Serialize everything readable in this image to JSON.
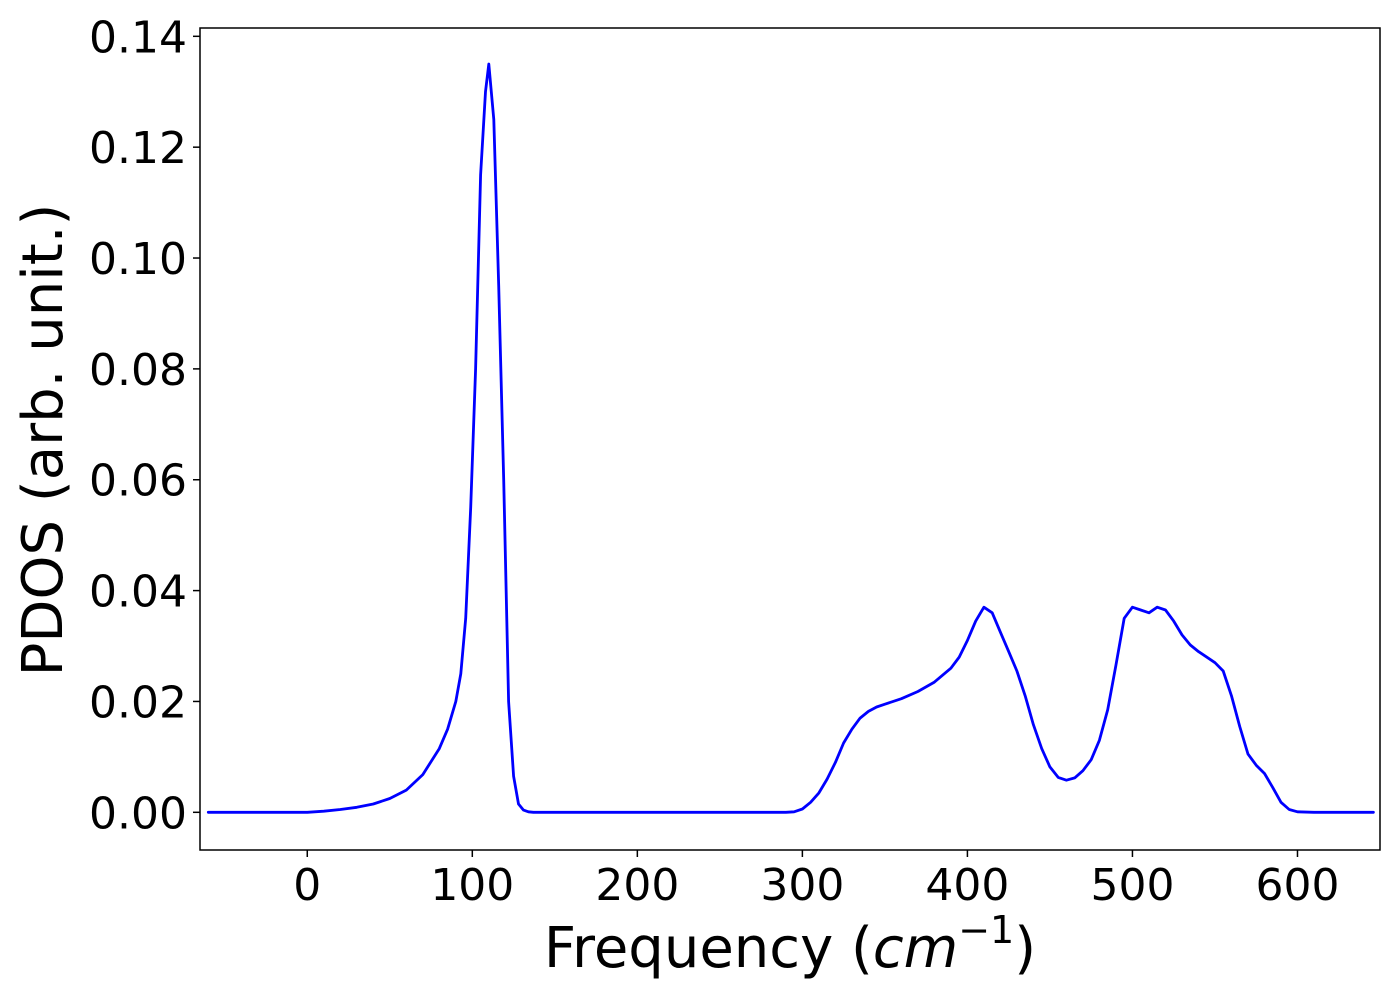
{
  "chart_data": {
    "type": "line",
    "title": "",
    "xlabel": "Frequency (cm⁻¹)",
    "xlabel_parts": {
      "prefix": "Frequency (",
      "math": "cm",
      "sup": "−1",
      "suffix": ")"
    },
    "ylabel": "PDOS (arb. unit.)",
    "xlim": [
      -65,
      650
    ],
    "ylim": [
      -0.0068,
      0.1415
    ],
    "xticks": [
      0,
      100,
      200,
      300,
      400,
      500,
      600
    ],
    "xtick_labels": [
      "0",
      "100",
      "200",
      "300",
      "400",
      "500",
      "600"
    ],
    "yticks": [
      0.0,
      0.02,
      0.04,
      0.06,
      0.08,
      0.1,
      0.12,
      0.14
    ],
    "ytick_labels": [
      "0.00",
      "0.02",
      "0.04",
      "0.06",
      "0.08",
      "0.10",
      "0.12",
      "0.14"
    ],
    "grid": false,
    "series": [
      {
        "color": "#0000ff",
        "x": [
          -60,
          -40,
          -20,
          0,
          10,
          20,
          30,
          40,
          50,
          60,
          70,
          80,
          85,
          90,
          93,
          96,
          99,
          102,
          105,
          108,
          110,
          113,
          116,
          119,
          122,
          125,
          128,
          131,
          134,
          137,
          140,
          160,
          200,
          250,
          290,
          295,
          300,
          305,
          310,
          315,
          320,
          325,
          330,
          335,
          340,
          345,
          350,
          360,
          370,
          380,
          390,
          395,
          400,
          405,
          410,
          415,
          420,
          425,
          430,
          435,
          440,
          445,
          450,
          455,
          460,
          465,
          470,
          475,
          480,
          485,
          490,
          495,
          500,
          505,
          510,
          515,
          520,
          525,
          530,
          535,
          540,
          545,
          550,
          555,
          560,
          565,
          570,
          575,
          580,
          585,
          590,
          595,
          600,
          610,
          620,
          630,
          646
        ],
        "y": [
          0.0,
          0.0,
          0.0,
          0.0,
          0.0002,
          0.0005,
          0.0009,
          0.0015,
          0.0025,
          0.004,
          0.0068,
          0.0115,
          0.015,
          0.02,
          0.025,
          0.035,
          0.055,
          0.08,
          0.115,
          0.13,
          0.135,
          0.125,
          0.095,
          0.06,
          0.02,
          0.0065,
          0.0015,
          0.0004,
          0.0001,
          0.0,
          0.0,
          0.0,
          0.0,
          0.0,
          0.0,
          0.0001,
          0.0006,
          0.0018,
          0.0035,
          0.006,
          0.009,
          0.0125,
          0.015,
          0.017,
          0.0182,
          0.019,
          0.0195,
          0.0205,
          0.0218,
          0.0235,
          0.026,
          0.028,
          0.031,
          0.0345,
          0.037,
          0.036,
          0.0325,
          0.029,
          0.0255,
          0.021,
          0.0158,
          0.0115,
          0.0082,
          0.0063,
          0.0058,
          0.0062,
          0.0075,
          0.0095,
          0.013,
          0.0185,
          0.0265,
          0.035,
          0.037,
          0.0365,
          0.036,
          0.037,
          0.0365,
          0.0345,
          0.032,
          0.0302,
          0.029,
          0.028,
          0.027,
          0.0255,
          0.021,
          0.0155,
          0.0105,
          0.0085,
          0.007,
          0.0045,
          0.0018,
          0.0005,
          0.0001,
          0.0,
          0.0,
          0.0,
          0.0
        ]
      }
    ]
  }
}
